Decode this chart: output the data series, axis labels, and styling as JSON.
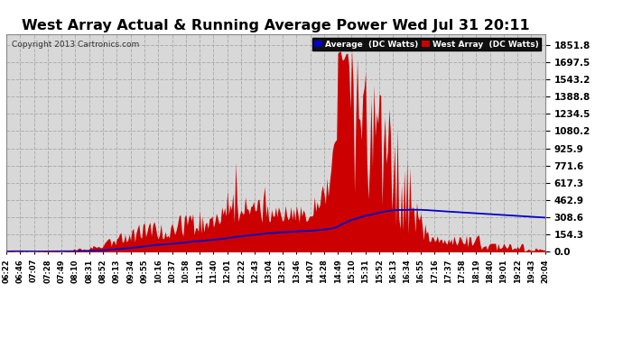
{
  "title": "West Array Actual & Running Average Power Wed Jul 31 20:11",
  "copyright": "Copyright 2013 Cartronics.com",
  "legend_avg": "Average  (DC Watts)",
  "legend_west": "West Array  (DC Watts)",
  "ylabel_values": [
    0.0,
    154.3,
    308.6,
    462.9,
    617.3,
    771.6,
    925.9,
    1080.2,
    1234.5,
    1388.8,
    1543.2,
    1697.5,
    1851.8
  ],
  "ylim_max": 1951,
  "bg_color": "#ffffff",
  "plot_bg_color": "#d8d8d8",
  "grid_color": "#aaaaaa",
  "bar_color": "#cc0000",
  "avg_color": "#0000cc",
  "title_color": "#000000",
  "title_fontsize": 11.5,
  "x_tick_labels": [
    "06:22",
    "06:46",
    "07:07",
    "07:28",
    "07:49",
    "08:10",
    "08:31",
    "08:52",
    "09:13",
    "09:34",
    "09:55",
    "10:16",
    "10:37",
    "10:58",
    "11:19",
    "11:40",
    "12:01",
    "12:22",
    "12:43",
    "13:04",
    "13:25",
    "13:46",
    "14:07",
    "14:28",
    "14:49",
    "15:10",
    "15:31",
    "15:52",
    "16:13",
    "16:34",
    "16:55",
    "17:16",
    "17:37",
    "17:58",
    "18:19",
    "18:40",
    "19:01",
    "19:22",
    "19:43",
    "20:04"
  ]
}
